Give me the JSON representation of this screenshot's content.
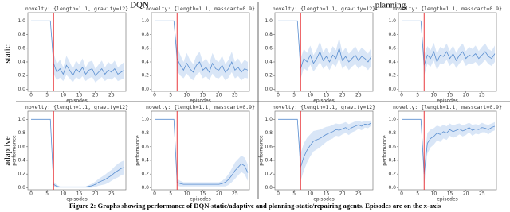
{
  "columns": [
    "DQN",
    "planning"
  ],
  "rows": [
    "static",
    "adaptive"
  ],
  "caption": "Figure 2: Graphs showing performance of DQN-static/adaptive and planning-static/repairing agents. Episodes are on the x-axis",
  "chart_data": [
    {
      "type": "line",
      "title": "novelty: {length=1.1, gravity=12}",
      "xlabel": "episodes",
      "x": [
        0,
        1,
        2,
        3,
        4,
        5,
        6,
        7,
        8,
        9,
        10,
        11,
        12,
        13,
        14,
        15,
        16,
        17,
        18,
        19,
        20,
        21,
        22,
        23,
        24,
        25,
        26,
        27,
        28,
        29
      ],
      "xlim": [
        -1,
        29.5
      ],
      "xticks": [
        0,
        5,
        10,
        15,
        20,
        25
      ],
      "ylim": [
        -0.03,
        1.12
      ],
      "yticks": [
        {
          "value": 0,
          "label": "0.0"
        },
        0.2,
        0.4,
        0.6,
        0.8,
        {
          "value": 1,
          "label": "1.0"
        }
      ],
      "vline": 7,
      "vline_color": "#e8383d",
      "series": [
        {
          "color": "#5b8fd0",
          "band_color": "#cfe0f5",
          "values": [
            1,
            1,
            1,
            1,
            1,
            1,
            1,
            0.38,
            0.25,
            0.3,
            0.22,
            0.35,
            0.28,
            0.2,
            0.3,
            0.25,
            0.32,
            0.22,
            0.28,
            0.3,
            0.2,
            0.25,
            0.3,
            0.22,
            0.28,
            0.25,
            0.3,
            0.22,
            0.25,
            0.28
          ],
          "errors": [
            0,
            0,
            0,
            0,
            0,
            0,
            0,
            0.15,
            0.12,
            0.13,
            0.1,
            0.14,
            0.12,
            0.1,
            0.12,
            0.11,
            0.13,
            0.1,
            0.12,
            0.12,
            0.1,
            0.11,
            0.12,
            0.1,
            0.12,
            0.11,
            0.12,
            0.1,
            0.11,
            0.12
          ]
        }
      ]
    },
    {
      "type": "line",
      "title": "novelty: {length=1.1, masscart=0.9}",
      "xlabel": "episodes",
      "x": [
        0,
        1,
        2,
        3,
        4,
        5,
        6,
        7,
        8,
        9,
        10,
        11,
        12,
        13,
        14,
        15,
        16,
        17,
        18,
        19,
        20,
        21,
        22,
        23,
        24,
        25,
        26,
        27,
        28,
        29
      ],
      "xlim": [
        -1,
        29.5
      ],
      "xticks": [
        0,
        5,
        10,
        15,
        20,
        25
      ],
      "ylim": [
        -0.03,
        1.12
      ],
      "yticks": [
        {
          "value": 0,
          "label": "0.0"
        },
        0.2,
        0.4,
        0.6,
        0.8,
        {
          "value": 1,
          "label": "1.0"
        }
      ],
      "vline": 7,
      "vline_color": "#e8383d",
      "series": [
        {
          "color": "#5b8fd0",
          "band_color": "#cfe0f5",
          "values": [
            1,
            1,
            1,
            1,
            1,
            1,
            1,
            0.45,
            0.35,
            0.28,
            0.38,
            0.3,
            0.25,
            0.35,
            0.4,
            0.28,
            0.32,
            0.25,
            0.38,
            0.3,
            0.28,
            0.35,
            0.25,
            0.3,
            0.4,
            0.28,
            0.32,
            0.25,
            0.3,
            0.28
          ],
          "errors": [
            0,
            0,
            0,
            0,
            0,
            0,
            0,
            0.18,
            0.15,
            0.12,
            0.15,
            0.13,
            0.12,
            0.14,
            0.15,
            0.12,
            0.13,
            0.12,
            0.15,
            0.13,
            0.12,
            0.14,
            0.12,
            0.13,
            0.15,
            0.12,
            0.13,
            0.12,
            0.13,
            0.12
          ]
        }
      ]
    },
    {
      "type": "line",
      "title": "novelty: {length=1.1, gravity=12}",
      "xlabel": "episodes",
      "x": [
        0,
        1,
        2,
        3,
        4,
        5,
        6,
        7,
        8,
        9,
        10,
        11,
        12,
        13,
        14,
        15,
        16,
        17,
        18,
        19,
        20,
        21,
        22,
        23,
        24,
        25,
        26,
        27,
        28,
        29
      ],
      "xlim": [
        -1,
        29.5
      ],
      "xticks": [
        0,
        5,
        10,
        15,
        20,
        25
      ],
      "ylim": [
        -0.03,
        1.12
      ],
      "yticks": [
        {
          "value": 0,
          "label": "0.0"
        },
        0.2,
        0.4,
        0.6,
        0.8,
        {
          "value": 1,
          "label": "1.0"
        }
      ],
      "vline": 7,
      "vline_color": "#e8383d",
      "series": [
        {
          "color": "#5b8fd0",
          "band_color": "#cfe0f5",
          "values": [
            1,
            1,
            1,
            1,
            1,
            1,
            1,
            0.3,
            0.45,
            0.4,
            0.5,
            0.38,
            0.45,
            0.55,
            0.42,
            0.48,
            0.4,
            0.5,
            0.45,
            0.6,
            0.42,
            0.48,
            0.4,
            0.45,
            0.5,
            0.42,
            0.48,
            0.45,
            0.4,
            0.48
          ],
          "errors": [
            0,
            0,
            0,
            0,
            0,
            0,
            0,
            0.15,
            0.14,
            0.13,
            0.14,
            0.12,
            0.13,
            0.15,
            0.12,
            0.13,
            0.12,
            0.13,
            0.12,
            0.15,
            0.12,
            0.13,
            0.12,
            0.12,
            0.13,
            0.12,
            0.13,
            0.12,
            0.12,
            0.13
          ]
        }
      ]
    },
    {
      "type": "line",
      "title": "novelty: {length=1.1, masscart=0.9}",
      "xlabel": "episodes",
      "x": [
        0,
        1,
        2,
        3,
        4,
        5,
        6,
        7,
        8,
        9,
        10,
        11,
        12,
        13,
        14,
        15,
        16,
        17,
        18,
        19,
        20,
        21,
        22,
        23,
        24,
        25,
        26,
        27,
        28,
        29
      ],
      "xlim": [
        -1,
        29.5
      ],
      "xticks": [
        0,
        5,
        10,
        15,
        20,
        25
      ],
      "ylim": [
        -0.03,
        1.12
      ],
      "yticks": [
        {
          "value": 0,
          "label": "0.0"
        },
        0.2,
        0.4,
        0.6,
        0.8,
        {
          "value": 1,
          "label": "1.0"
        }
      ],
      "vline": 7,
      "vline_color": "#e8383d",
      "series": [
        {
          "color": "#5b8fd0",
          "band_color": "#cfe0f5",
          "values": [
            1,
            1,
            1,
            1,
            1,
            1,
            1,
            0.35,
            0.5,
            0.45,
            0.55,
            0.4,
            0.5,
            0.48,
            0.55,
            0.45,
            0.52,
            0.42,
            0.5,
            0.55,
            0.45,
            0.5,
            0.48,
            0.52,
            0.45,
            0.5,
            0.55,
            0.48,
            0.45,
            0.52
          ],
          "errors": [
            0,
            0,
            0,
            0,
            0,
            0,
            0,
            0.15,
            0.13,
            0.12,
            0.13,
            0.12,
            0.12,
            0.11,
            0.12,
            0.11,
            0.12,
            0.11,
            0.12,
            0.12,
            0.11,
            0.12,
            0.11,
            0.12,
            0.11,
            0.12,
            0.12,
            0.11,
            0.11,
            0.12
          ]
        }
      ]
    },
    {
      "type": "line",
      "title": "novelty: {length=1.1, gravity=12}",
      "xlabel": "episodes",
      "ylabel": "performance",
      "x": [
        0,
        1,
        2,
        3,
        4,
        5,
        6,
        7,
        8,
        9,
        10,
        11,
        12,
        13,
        14,
        15,
        16,
        17,
        18,
        19,
        20,
        21,
        22,
        23,
        24,
        25,
        26,
        27,
        28,
        29
      ],
      "xlim": [
        -1,
        29.5
      ],
      "xticks": [
        0,
        5,
        10,
        15,
        20,
        25
      ],
      "ylim": [
        -0.03,
        1.12
      ],
      "yticks": [
        {
          "value": 0,
          "label": "0.0"
        },
        0.2,
        0.4,
        0.6,
        0.8,
        {
          "value": 1,
          "label": "1.0"
        }
      ],
      "vline": 7,
      "vline_color": "#e8383d",
      "series": [
        {
          "color": "#5b8fd0",
          "band_color": "#cfe0f5",
          "values": [
            1,
            1,
            1,
            1,
            1,
            1,
            1,
            0.05,
            0.02,
            0.01,
            0.01,
            0.01,
            0.01,
            0.01,
            0.01,
            0.01,
            0.01,
            0.01,
            0.02,
            0.03,
            0.05,
            0.08,
            0.1,
            0.12,
            0.15,
            0.18,
            0.22,
            0.25,
            0.28,
            0.3
          ],
          "errors": [
            0,
            0,
            0,
            0,
            0,
            0,
            0,
            0.04,
            0.02,
            0.01,
            0.01,
            0.01,
            0.01,
            0.01,
            0.01,
            0.01,
            0.01,
            0.01,
            0.02,
            0.03,
            0.04,
            0.05,
            0.06,
            0.07,
            0.08,
            0.08,
            0.09,
            0.1,
            0.1,
            0.1
          ]
        }
      ]
    },
    {
      "type": "line",
      "title": "novelty: {length=1.1, masscart=0.9}",
      "xlabel": "episodes",
      "ylabel": "performance",
      "x": [
        0,
        1,
        2,
        3,
        4,
        5,
        6,
        7,
        8,
        9,
        10,
        11,
        12,
        13,
        14,
        15,
        16,
        17,
        18,
        19,
        20,
        21,
        22,
        23,
        24,
        25,
        26,
        27,
        28,
        29
      ],
      "xlim": [
        -1,
        29.5
      ],
      "xticks": [
        0,
        5,
        10,
        15,
        20,
        25
      ],
      "ylim": [
        -0.03,
        1.12
      ],
      "yticks": [
        {
          "value": 0,
          "label": "0.0"
        },
        0.2,
        0.4,
        0.6,
        0.8,
        {
          "value": 1,
          "label": "1.0"
        }
      ],
      "vline": 7,
      "vline_color": "#e8383d",
      "series": [
        {
          "color": "#5b8fd0",
          "band_color": "#cfe0f5",
          "values": [
            1,
            1,
            1,
            1,
            1,
            1,
            1,
            0.08,
            0.06,
            0.05,
            0.05,
            0.05,
            0.05,
            0.05,
            0.05,
            0.05,
            0.05,
            0.05,
            0.05,
            0.05,
            0.05,
            0.06,
            0.08,
            0.12,
            0.18,
            0.25,
            0.3,
            0.35,
            0.32,
            0.22
          ],
          "errors": [
            0,
            0,
            0,
            0,
            0,
            0,
            0,
            0.05,
            0.04,
            0.03,
            0.03,
            0.03,
            0.03,
            0.03,
            0.03,
            0.03,
            0.03,
            0.03,
            0.03,
            0.03,
            0.03,
            0.04,
            0.06,
            0.08,
            0.1,
            0.12,
            0.12,
            0.12,
            0.12,
            0.12
          ]
        }
      ]
    },
    {
      "type": "line",
      "title": "novelty: {length=1.1, gravity=12}",
      "xlabel": "episodes",
      "ylabel": "performance",
      "x": [
        0,
        1,
        2,
        3,
        4,
        5,
        6,
        7,
        8,
        9,
        10,
        11,
        12,
        13,
        14,
        15,
        16,
        17,
        18,
        19,
        20,
        21,
        22,
        23,
        24,
        25,
        26,
        27,
        28,
        29
      ],
      "xlim": [
        -1,
        29.5
      ],
      "xticks": [
        0,
        5,
        10,
        15,
        20,
        25
      ],
      "ylim": [
        -0.03,
        1.12
      ],
      "yticks": [
        {
          "value": 0,
          "label": "0.0"
        },
        0.2,
        0.4,
        0.6,
        0.8,
        {
          "value": 1,
          "label": "1.0"
        }
      ],
      "vline": 7,
      "vline_color": "#e8383d",
      "series": [
        {
          "color": "#5b8fd0",
          "band_color": "#cfe0f5",
          "values": [
            1,
            1,
            1,
            1,
            1,
            1,
            1,
            0.3,
            0.45,
            0.55,
            0.62,
            0.68,
            0.7,
            0.72,
            0.75,
            0.78,
            0.8,
            0.82,
            0.85,
            0.84,
            0.86,
            0.88,
            0.85,
            0.88,
            0.9,
            0.92,
            0.9,
            0.93,
            0.92,
            0.95
          ],
          "errors": [
            0,
            0,
            0,
            0,
            0,
            0,
            0,
            0.2,
            0.2,
            0.18,
            0.16,
            0.15,
            0.14,
            0.13,
            0.12,
            0.11,
            0.1,
            0.1,
            0.09,
            0.09,
            0.08,
            0.08,
            0.08,
            0.07,
            0.07,
            0.06,
            0.06,
            0.05,
            0.05,
            0.04
          ]
        }
      ]
    },
    {
      "type": "line",
      "title": "novelty: {length=1.1, masscart=0.9}",
      "xlabel": "episodes",
      "ylabel": "performance",
      "x": [
        0,
        1,
        2,
        3,
        4,
        5,
        6,
        7,
        8,
        9,
        10,
        11,
        12,
        13,
        14,
        15,
        16,
        17,
        18,
        19,
        20,
        21,
        22,
        23,
        24,
        25,
        26,
        27,
        28,
        29
      ],
      "xlim": [
        -1,
        29.5
      ],
      "xticks": [
        0,
        5,
        10,
        15,
        20,
        25
      ],
      "ylim": [
        -0.03,
        1.12
      ],
      "yticks": [
        {
          "value": 0,
          "label": "0.0"
        },
        0.2,
        0.4,
        0.6,
        0.8,
        {
          "value": 1,
          "label": "1.0"
        }
      ],
      "vline": 7,
      "vline_color": "#e8383d",
      "series": [
        {
          "color": "#5b8fd0",
          "band_color": "#cfe0f5",
          "values": [
            1,
            1,
            1,
            1,
            1,
            1,
            1,
            0.2,
            0.65,
            0.72,
            0.75,
            0.8,
            0.78,
            0.82,
            0.8,
            0.85,
            0.82,
            0.84,
            0.86,
            0.83,
            0.85,
            0.88,
            0.84,
            0.86,
            0.85,
            0.88,
            0.87,
            0.85,
            0.88,
            0.9
          ],
          "errors": [
            0,
            0,
            0,
            0,
            0,
            0,
            0,
            0.18,
            0.15,
            0.13,
            0.12,
            0.11,
            0.11,
            0.1,
            0.1,
            0.09,
            0.09,
            0.09,
            0.08,
            0.08,
            0.08,
            0.07,
            0.08,
            0.07,
            0.07,
            0.07,
            0.06,
            0.07,
            0.06,
            0.06
          ]
        }
      ]
    }
  ]
}
